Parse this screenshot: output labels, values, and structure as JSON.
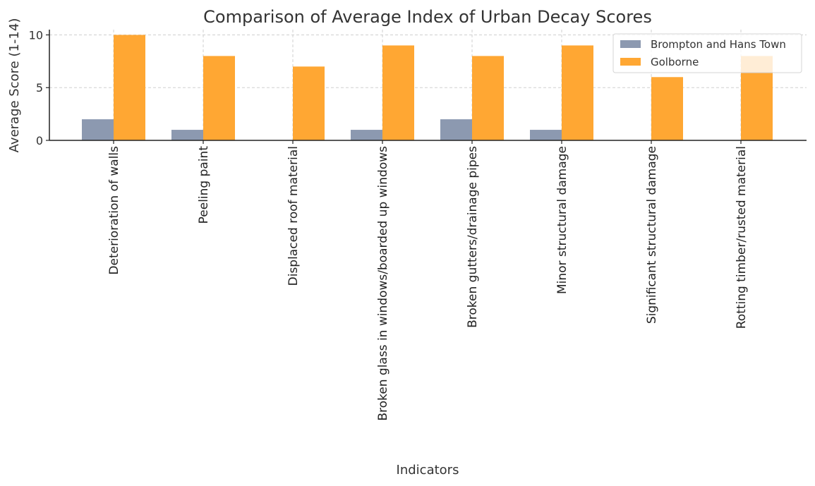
{
  "chart_data": {
    "type": "bar",
    "title": "Comparison of Average Index of Urban Decay Scores",
    "xlabel": "Indicators",
    "ylabel": "Average Score (1-14)",
    "ylim": [
      0,
      10.5
    ],
    "yticks": [
      0,
      5,
      10
    ],
    "grid": true,
    "legend_position": "top-right",
    "categories": [
      "Deterioration of walls",
      "Peeling paint",
      "Displaced roof material",
      "Broken glass in windows/boarded up windows",
      "Broken gutters/drainage pipes",
      "Minor structural damage",
      "Significant structural damage",
      "Rotting timber/rusted material"
    ],
    "series": [
      {
        "name": "Brompton and Hans Town",
        "color": "#8c99b0",
        "values": [
          2,
          1,
          0,
          1,
          2,
          1,
          0,
          0
        ]
      },
      {
        "name": "Golborne",
        "color": "#ffa733",
        "values": [
          10,
          8,
          7,
          9,
          8,
          9,
          6,
          8
        ]
      }
    ]
  }
}
